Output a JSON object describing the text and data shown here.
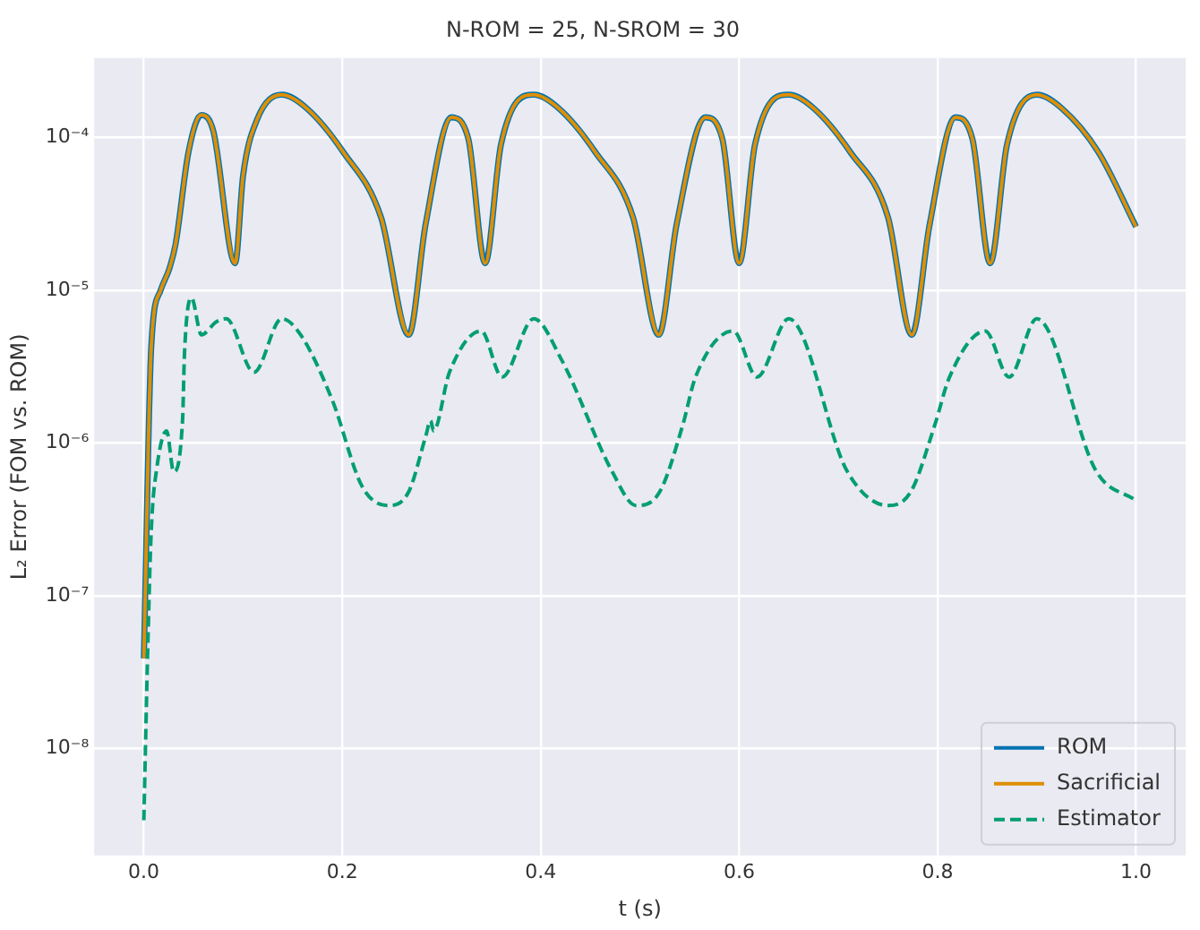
{
  "chart_data": {
    "type": "line",
    "title": "N-ROM = 25, N-SROM = 30",
    "xlabel": "t (s)",
    "ylabel": "L₂ Error (FOM vs. ROM)",
    "log": "y",
    "grid": true,
    "legend": "bottom right",
    "xlim": [
      -0.05,
      1.05
    ],
    "xticks": [
      {
        "value": 0,
        "label": "0.0"
      },
      {
        "value": 0.2,
        "label": "0.2"
      },
      {
        "value": 0.4,
        "label": "0.4"
      },
      {
        "value": 0.6,
        "label": "0.6"
      },
      {
        "value": 0.8,
        "label": "0.8"
      },
      {
        "value": 1,
        "label": "1.0"
      }
    ],
    "ylim": [
      2e-09,
      0.00033
    ],
    "yticks": [
      {
        "value": 1e-08,
        "label": "10⁻⁸"
      },
      {
        "value": 1e-07,
        "label": "10⁻⁷"
      },
      {
        "value": 1e-06,
        "label": "10⁻⁶"
      },
      {
        "value": 1e-05,
        "label": "10⁻⁵"
      },
      {
        "value": 0.0001,
        "label": "10⁻⁴"
      }
    ],
    "series": [
      {
        "name": "ROM",
        "color": "#0173b2",
        "line_style": "solid",
        "x": [
          0,
          0.0075,
          0.017,
          0.026,
          0.032,
          0.045,
          0.058,
          0.07,
          0.092,
          0.1,
          0.114,
          0.139,
          0.164,
          0.201,
          0.239,
          0.267,
          0.284,
          0.31,
          0.327,
          0.344,
          0.36,
          0.393,
          0.418,
          0.455,
          0.493,
          0.519,
          0.537,
          0.566,
          0.583,
          0.6,
          0.616,
          0.65,
          0.675,
          0.712,
          0.75,
          0.774,
          0.792,
          0.818,
          0.835,
          0.853,
          0.87,
          0.9,
          0.925,
          0.962,
          1.0
        ],
        "values": [
          3.9e-08,
          4.3e-06,
          1e-05,
          1.4e-05,
          2e-05,
          8e-05,
          0.00014,
          0.00011,
          1.5e-05,
          5.6e-05,
          0.00013,
          0.00019,
          0.000155,
          8e-05,
          3e-05,
          5.1e-06,
          2.7e-05,
          0.000135,
          9.8e-05,
          1.5e-05,
          9e-05,
          0.00019,
          0.000155,
          8e-05,
          3e-05,
          5.1e-06,
          2.7e-05,
          0.000135,
          9.8e-05,
          1.5e-05,
          9e-05,
          0.00019,
          0.000155,
          8e-05,
          3e-05,
          5.1e-06,
          2.7e-05,
          0.000135,
          9.8e-05,
          1.5e-05,
          9e-05,
          0.00019,
          0.000155,
          8e-05,
          2.6e-05
        ]
      },
      {
        "name": "Sacrificial",
        "color": "#de8f05",
        "line_style": "solid",
        "x": [
          0,
          0.0075,
          0.017,
          0.026,
          0.032,
          0.045,
          0.058,
          0.07,
          0.092,
          0.1,
          0.114,
          0.139,
          0.164,
          0.201,
          0.239,
          0.267,
          0.284,
          0.31,
          0.327,
          0.344,
          0.36,
          0.393,
          0.418,
          0.455,
          0.493,
          0.519,
          0.537,
          0.566,
          0.583,
          0.6,
          0.616,
          0.65,
          0.675,
          0.712,
          0.75,
          0.774,
          0.792,
          0.818,
          0.835,
          0.853,
          0.87,
          0.9,
          0.925,
          0.962,
          1.0
        ],
        "values": [
          3.9e-08,
          4.3e-06,
          1e-05,
          1.4e-05,
          2e-05,
          8e-05,
          0.00014,
          0.00011,
          1.5e-05,
          5.6e-05,
          0.00013,
          0.00019,
          0.000155,
          8e-05,
          3e-05,
          5.1e-06,
          2.7e-05,
          0.000135,
          9.8e-05,
          1.5e-05,
          9e-05,
          0.00019,
          0.000155,
          8e-05,
          3e-05,
          5.1e-06,
          2.7e-05,
          0.000135,
          9.8e-05,
          1.5e-05,
          9e-05,
          0.00019,
          0.000155,
          8e-05,
          3e-05,
          5.1e-06,
          2.7e-05,
          0.000135,
          9.8e-05,
          1.5e-05,
          9e-05,
          0.00019,
          0.000155,
          8e-05,
          2.6e-05
        ]
      },
      {
        "name": "Estimator",
        "color": "#029e73",
        "line_style": "dashed",
        "x": [
          0,
          0.004,
          0.0075,
          0.013,
          0.023,
          0.03,
          0.039,
          0.041,
          0.048,
          0.058,
          0.073,
          0.083,
          0.111,
          0.139,
          0.158,
          0.19,
          0.22,
          0.246,
          0.267,
          0.284,
          0.289,
          0.292,
          0.308,
          0.34,
          0.361,
          0.393,
          0.421,
          0.472,
          0.496,
          0.52,
          0.543,
          0.556,
          0.594,
          0.618,
          0.65,
          0.709,
          0.75,
          0.773,
          0.797,
          0.812,
          0.848,
          0.872,
          0.9,
          0.96,
          1.0
        ],
        "values": [
          3.4e-09,
          4.7e-08,
          2.7e-07,
          6.8e-07,
          1.2e-06,
          6.5e-07,
          1.4e-06,
          3.9e-06,
          8.9e-06,
          5.1e-06,
          6.2e-06,
          6.5e-06,
          2.9e-06,
          6.5e-06,
          5.1e-06,
          1.9e-06,
          5.2e-07,
          3.9e-07,
          4.8e-07,
          1.1e-06,
          1.4e-06,
          1.2e-06,
          2.9e-06,
          5.4e-06,
          2.7e-06,
          6.5e-06,
          3.5e-06,
          6.5e-07,
          3.9e-07,
          4.8e-07,
          1.3e-06,
          2.7e-06,
          5.4e-06,
          2.7e-06,
          6.5e-06,
          6.5e-07,
          3.9e-07,
          4.8e-07,
          1.3e-06,
          2.7e-06,
          5.4e-06,
          2.7e-06,
          6.5e-06,
          6.5e-07,
          4.2e-07
        ]
      }
    ]
  }
}
